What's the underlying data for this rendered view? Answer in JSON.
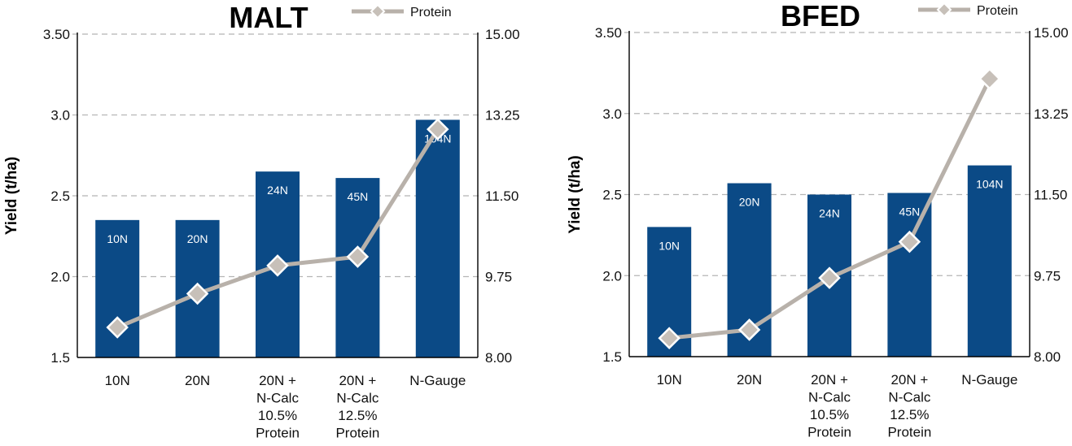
{
  "colors": {
    "bar": "#0b4a86",
    "line": "#b8b1aa",
    "marker_fill": "#c7c0b9",
    "marker_stroke": "#ffffff",
    "grid": "#b5b5b5"
  },
  "chart_data": [
    {
      "type": "bar+line",
      "title": "MALT",
      "ylabel": "Yield (t/ha)",
      "ylim": [
        1.5,
        3.5
      ],
      "y_ticks": [
        "1.5",
        "2.0",
        "2.5",
        "3.0",
        "3.50"
      ],
      "y_tick_values": [
        1.5,
        2.0,
        2.5,
        3.0,
        3.5
      ],
      "y2lim": [
        8.0,
        15.0
      ],
      "y2_ticks": [
        "8.00",
        "9.75",
        "11.50",
        "13.25",
        "15.00"
      ],
      "y2_tick_values": [
        8.0,
        9.75,
        11.5,
        13.25,
        15.0
      ],
      "grid": true,
      "legend": "top-right",
      "categories": [
        [
          "10N"
        ],
        [
          "20N"
        ],
        [
          "20N +",
          "N-Calc",
          "10.5%",
          "Protein"
        ],
        [
          "20N +",
          "N-Calc",
          "12.5%",
          "Protein"
        ],
        [
          "N-Gauge"
        ]
      ],
      "bars": {
        "name": "Yield",
        "values": [
          2.35,
          2.35,
          2.65,
          2.61,
          2.97
        ],
        "labels": [
          "10N",
          "20N",
          "24N",
          "45N",
          "104N"
        ]
      },
      "line": {
        "name": "Protein",
        "axis": "right",
        "values": [
          8.65,
          9.38,
          9.99,
          10.18,
          12.94
        ]
      }
    },
    {
      "type": "bar+line",
      "title": "BFED",
      "ylabel": "Yield (t/ha)",
      "ylim": [
        1.5,
        3.5
      ],
      "y_ticks": [
        "1.5",
        "2.0",
        "2.5",
        "3.0",
        "3.50"
      ],
      "y_tick_values": [
        1.5,
        2.0,
        2.5,
        3.0,
        3.5
      ],
      "y2lim": [
        8.0,
        15.0
      ],
      "y2_ticks": [
        "8.00",
        "9.75",
        "11.50",
        "13.25",
        "15.00"
      ],
      "y2_tick_values": [
        8.0,
        9.75,
        11.5,
        13.25,
        15.0
      ],
      "grid": true,
      "legend": "top-right",
      "categories": [
        [
          "10N"
        ],
        [
          "20N"
        ],
        [
          "20N +",
          "N-Calc",
          "10.5%",
          "Protein"
        ],
        [
          "20N +",
          "N-Calc",
          "12.5%",
          "Protein"
        ],
        [
          "N-Gauge"
        ]
      ],
      "bars": {
        "name": "Yield",
        "values": [
          2.3,
          2.57,
          2.5,
          2.51,
          2.68
        ],
        "labels": [
          "10N",
          "20N",
          "24N",
          "45N",
          "104N"
        ]
      },
      "line": {
        "name": "Protein",
        "axis": "right",
        "values": [
          8.4,
          8.58,
          9.7,
          10.48,
          14.0
        ]
      }
    }
  ]
}
